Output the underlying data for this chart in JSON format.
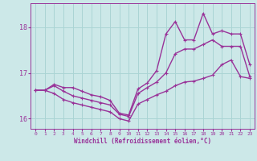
{
  "xlabel": "Windchill (Refroidissement éolien,°C)",
  "bg_color": "#cce8e8",
  "line_color": "#993399",
  "hours": [
    0,
    1,
    2,
    3,
    4,
    5,
    6,
    7,
    8,
    9,
    10,
    11,
    12,
    13,
    14,
    15,
    16,
    17,
    18,
    19,
    20,
    21,
    22,
    23
  ],
  "y_low": [
    16.62,
    16.62,
    16.55,
    16.42,
    16.35,
    16.3,
    16.25,
    16.2,
    16.15,
    16.0,
    15.95,
    16.32,
    16.42,
    16.52,
    16.6,
    16.72,
    16.8,
    16.82,
    16.88,
    16.95,
    17.18,
    17.28,
    16.92,
    16.88
  ],
  "y_mid": [
    16.62,
    16.62,
    16.72,
    16.6,
    16.5,
    16.45,
    16.4,
    16.35,
    16.3,
    16.1,
    16.05,
    16.55,
    16.68,
    16.8,
    17.0,
    17.42,
    17.52,
    17.52,
    17.62,
    17.72,
    17.58,
    17.58,
    17.58,
    16.92
  ],
  "y_high": [
    16.62,
    16.62,
    16.75,
    16.68,
    16.68,
    16.6,
    16.52,
    16.48,
    16.4,
    16.12,
    16.08,
    16.65,
    16.78,
    17.05,
    17.85,
    18.12,
    17.72,
    17.72,
    18.3,
    17.85,
    17.92,
    17.85,
    17.85,
    17.18
  ],
  "ylim": [
    15.78,
    18.52
  ],
  "yticks": [
    16,
    17,
    18
  ],
  "grid_color": "#aad4d4",
  "markersize": 2.5,
  "linewidth": 1.0
}
